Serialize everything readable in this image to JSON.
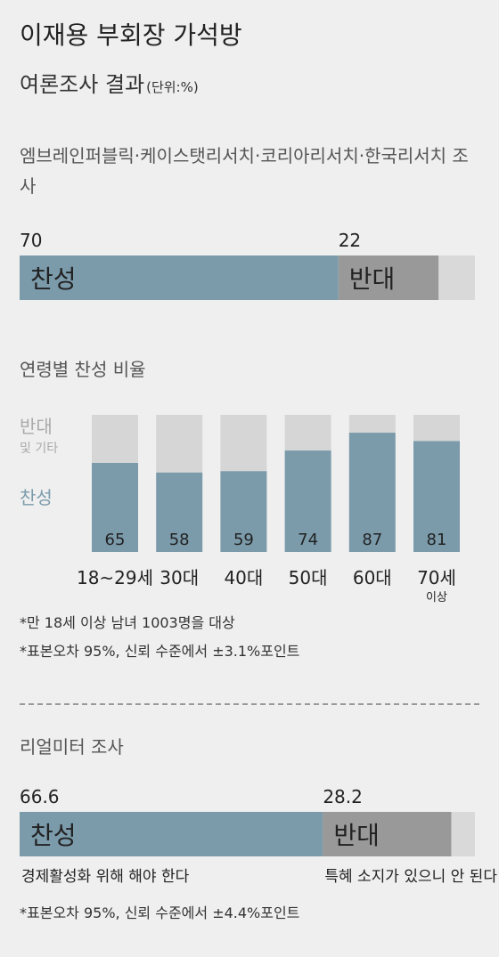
{
  "header": {
    "title": "이재용 부회장 가석방",
    "subtitle": "여론조사 결과",
    "unit": "(단위:%)"
  },
  "chart_data": [
    {
      "type": "bar",
      "orientation": "horizontal",
      "stacked": true,
      "title": "엠브레인퍼블릭·케이스탯리서치·코리아리서치·한국리서치 조사",
      "xlim": [
        0,
        100
      ],
      "series": [
        {
          "name": "찬성",
          "color": "#7b9bab",
          "values": [
            70
          ]
        },
        {
          "name": "반대",
          "color": "#999999",
          "values": [
            22
          ]
        }
      ]
    },
    {
      "type": "bar",
      "orientation": "vertical",
      "stacked": true,
      "title": "연령별 찬성 비율",
      "categories": [
        "18~29세",
        "30대",
        "40대",
        "50대",
        "60대",
        "70세\n이상"
      ],
      "ylim": [
        0,
        100
      ],
      "series": [
        {
          "name": "찬성",
          "color": "#7b9bab",
          "values": [
            65,
            58,
            59,
            74,
            87,
            81
          ]
        },
        {
          "name": "반대\n및 기타",
          "color": "#d6d6d6",
          "values": [
            35,
            42,
            41,
            26,
            13,
            19
          ]
        }
      ],
      "notes": [
        "*만 18세 이상 남녀 1003명을 대상",
        "*표본오차 95%, 신뢰 수준에서 ±3.1%포인트"
      ]
    },
    {
      "type": "bar",
      "orientation": "horizontal",
      "stacked": true,
      "title": "리얼미터 조사",
      "xlim": [
        0,
        100
      ],
      "series": [
        {
          "name": "찬성",
          "color": "#7b9bab",
          "values": [
            66.6
          ],
          "description": "경제활성화 위해 해야 한다"
        },
        {
          "name": "반대",
          "color": "#999999",
          "values": [
            28.2
          ],
          "description": "특혜 소지가 있으니 안 된다"
        }
      ],
      "notes": [
        "*표본오차 95%, 신뢰 수준에서 ±4.4%포인트"
      ]
    }
  ]
}
